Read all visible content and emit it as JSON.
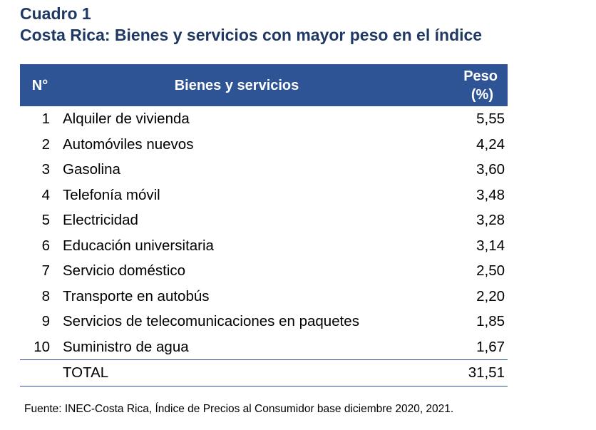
{
  "title": {
    "line1": "Cuadro 1",
    "line2": "Costa Rica: Bienes y servicios con mayor peso en el índice"
  },
  "colors": {
    "title": "#1f3864",
    "header_bg": "#2f5496",
    "header_text": "#ffffff",
    "rule": "#2f5496"
  },
  "table": {
    "headers": {
      "num": "N°",
      "item": "Bienes y servicios",
      "peso": "Peso (%)"
    },
    "rows": [
      {
        "num": "1",
        "item": "Alquiler de vivienda",
        "peso": "5,55"
      },
      {
        "num": "2",
        "item": "Automóviles nuevos",
        "peso": "4,24"
      },
      {
        "num": "3",
        "item": "Gasolina",
        "peso": "3,60"
      },
      {
        "num": "4",
        "item": "Telefonía móvil",
        "peso": "3,48"
      },
      {
        "num": "5",
        "item": "Electricidad",
        "peso": "3,28"
      },
      {
        "num": "6",
        "item": "Educación universitaria",
        "peso": "3,14"
      },
      {
        "num": "7",
        "item": "Servicio doméstico",
        "peso": "2,50"
      },
      {
        "num": "8",
        "item": "Transporte en autobús",
        "peso": "2,20"
      },
      {
        "num": "9",
        "item": "Servicios de telecomunicaciones en paquetes",
        "peso": "1,85"
      },
      {
        "num": "10",
        "item": "Suministro de agua",
        "peso": "1,67"
      }
    ],
    "total": {
      "label": "TOTAL",
      "peso": "31,51"
    }
  },
  "source": "Fuente: INEC-Costa Rica, Índice de Precios al Consumidor base diciembre 2020, 2021."
}
